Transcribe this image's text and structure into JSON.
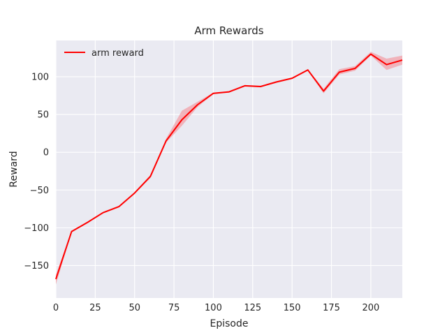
{
  "chart_data": {
    "type": "line",
    "title": "Arm Rewards",
    "xlabel": "Episode",
    "ylabel": "Reward",
    "xlim": [
      0,
      220
    ],
    "ylim": [
      -193,
      148
    ],
    "xticks": [
      0,
      25,
      50,
      75,
      100,
      125,
      150,
      175,
      200
    ],
    "yticks": [
      -150,
      -100,
      -50,
      0,
      50,
      100
    ],
    "grid": true,
    "legend_position": "top-left",
    "colors": {
      "background": "#eaeaf2",
      "grid": "#ffffff",
      "line": "#ff0000",
      "band": "#f2a0a8"
    },
    "series": [
      {
        "name": "arm reward",
        "x": [
          0,
          10,
          20,
          30,
          40,
          50,
          60,
          70,
          80,
          90,
          100,
          110,
          120,
          130,
          140,
          150,
          160,
          170,
          180,
          190,
          200,
          210,
          220
        ],
        "y": [
          -168,
          -105,
          -93,
          -80,
          -72,
          -54,
          -32,
          15,
          43,
          63,
          78,
          80,
          88,
          87,
          93,
          98,
          109,
          81,
          106,
          111,
          130,
          116,
          122
        ],
        "y_lower": [
          -175,
          -106,
          -94,
          -81,
          -73,
          -55,
          -34,
          13,
          35,
          60,
          77,
          79,
          87,
          86,
          92,
          97,
          108,
          78,
          103,
          108,
          128,
          109,
          116
        ],
        "y_upper": [
          -162,
          -104,
          -92,
          -79,
          -71,
          -53,
          -30,
          18,
          55,
          67,
          79,
          81,
          89,
          88,
          94,
          99,
          110,
          84,
          110,
          114,
          133,
          124,
          128
        ]
      }
    ]
  }
}
